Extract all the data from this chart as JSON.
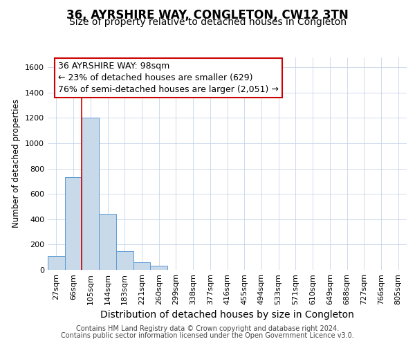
{
  "title": "36, AYRSHIRE WAY, CONGLETON, CW12 3TN",
  "subtitle": "Size of property relative to detached houses in Congleton",
  "xlabel": "Distribution of detached houses by size in Congleton",
  "ylabel": "Number of detached properties",
  "categories": [
    "27sqm",
    "66sqm",
    "105sqm",
    "144sqm",
    "183sqm",
    "221sqm",
    "260sqm",
    "299sqm",
    "338sqm",
    "377sqm",
    "416sqm",
    "455sqm",
    "494sqm",
    "533sqm",
    "571sqm",
    "610sqm",
    "649sqm",
    "688sqm",
    "727sqm",
    "766sqm",
    "805sqm"
  ],
  "values": [
    108,
    730,
    1200,
    440,
    145,
    60,
    35,
    0,
    0,
    0,
    0,
    0,
    0,
    0,
    0,
    0,
    0,
    0,
    0,
    0,
    0
  ],
  "bar_color": "#c8d9ea",
  "bar_edge_color": "#5b9bd5",
  "grid_color": "#c8d4e8",
  "background_color": "#ffffff",
  "vline_color": "#cc0000",
  "vline_x": 1.5,
  "annotation_text": "36 AYRSHIRE WAY: 98sqm\n← 23% of detached houses are smaller (629)\n76% of semi-detached houses are larger (2,051) →",
  "annotation_box_color": "#cc0000",
  "ylim": [
    0,
    1680
  ],
  "yticks": [
    0,
    200,
    400,
    600,
    800,
    1000,
    1200,
    1400,
    1600
  ],
  "footer_line1": "Contains HM Land Registry data © Crown copyright and database right 2024.",
  "footer_line2": "Contains public sector information licensed under the Open Government Licence v3.0.",
  "title_fontsize": 12,
  "subtitle_fontsize": 10,
  "annotation_fontsize": 9,
  "tick_fontsize": 8,
  "ylabel_fontsize": 8.5,
  "xlabel_fontsize": 10,
  "footer_fontsize": 7
}
